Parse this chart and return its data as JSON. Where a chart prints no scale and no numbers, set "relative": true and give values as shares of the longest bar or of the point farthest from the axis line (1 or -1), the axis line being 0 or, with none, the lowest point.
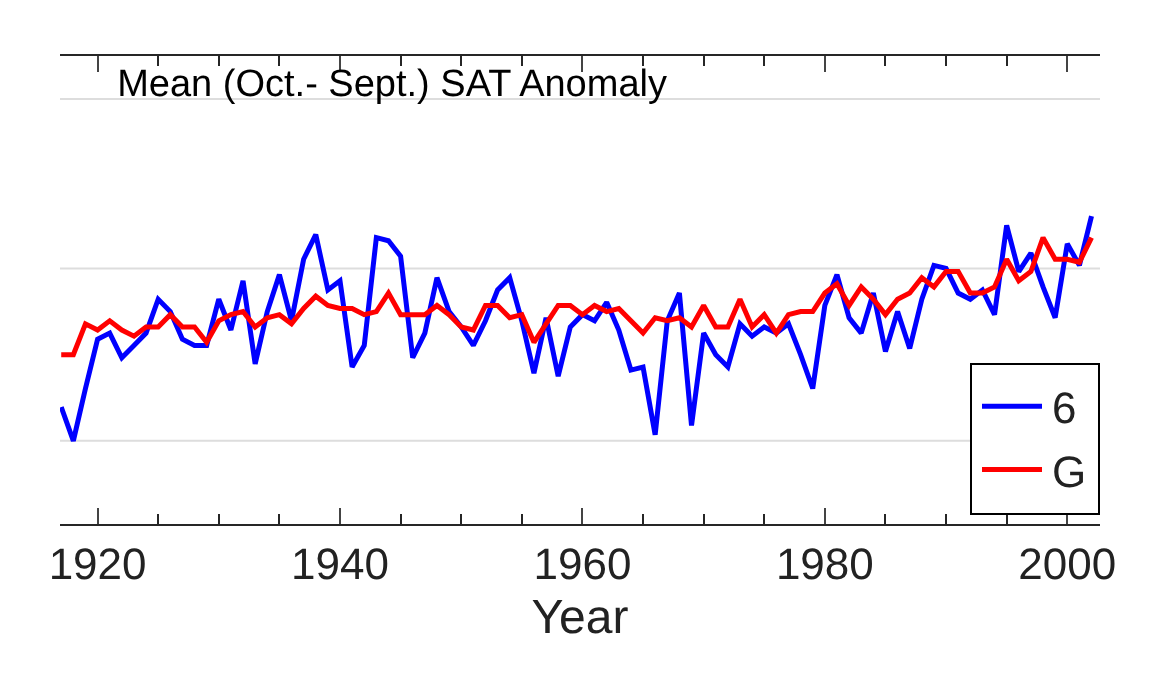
{
  "chart_data": {
    "type": "line",
    "title": "Mean (Oct.- Sept.) SAT Anomaly",
    "xlabel": "Year",
    "relative": true,
    "x": [
      1917,
      1918,
      1919,
      1920,
      1921,
      1922,
      1923,
      1924,
      1925,
      1926,
      1927,
      1928,
      1929,
      1930,
      1931,
      1932,
      1933,
      1934,
      1935,
      1936,
      1937,
      1938,
      1939,
      1940,
      1941,
      1942,
      1943,
      1944,
      1945,
      1946,
      1947,
      1948,
      1949,
      1950,
      1951,
      1952,
      1953,
      1954,
      1955,
      1956,
      1957,
      1958,
      1959,
      1960,
      1961,
      1962,
      1963,
      1964,
      1965,
      1966,
      1967,
      1968,
      1969,
      1970,
      1971,
      1972,
      1973,
      1974,
      1975,
      1976,
      1977,
      1978,
      1979,
      1980,
      1981,
      1982,
      1983,
      1984,
      1985,
      1986,
      1987,
      1988,
      1989,
      1990,
      1991,
      1992,
      1993,
      1994,
      1995,
      1996,
      1997,
      1998,
      1999,
      2000,
      2001,
      2002
    ],
    "xlim": [
      1916.9,
      2002.7
    ],
    "xticks": [
      1920,
      1940,
      1960,
      1980,
      2000
    ],
    "series": [
      {
        "name": "6",
        "color": "#0000ff",
        "values": [
          0.38,
          0.27,
          0.44,
          0.6,
          0.62,
          0.54,
          0.58,
          0.62,
          0.73,
          0.69,
          0.6,
          0.58,
          0.58,
          0.73,
          0.63,
          0.79,
          0.52,
          0.69,
          0.81,
          0.66,
          0.86,
          0.94,
          0.76,
          0.79,
          0.51,
          0.58,
          0.93,
          0.92,
          0.87,
          0.54,
          0.62,
          0.8,
          0.69,
          0.64,
          0.58,
          0.66,
          0.76,
          0.8,
          0.66,
          0.49,
          0.67,
          0.48,
          0.64,
          0.68,
          0.66,
          0.72,
          0.63,
          0.5,
          0.51,
          0.29,
          0.66,
          0.75,
          0.32,
          0.62,
          0.55,
          0.51,
          0.65,
          0.61,
          0.64,
          0.62,
          0.65,
          0.55,
          0.44,
          0.71,
          0.81,
          0.67,
          0.62,
          0.75,
          0.56,
          0.69,
          0.57,
          0.73,
          0.84,
          0.83,
          0.75,
          0.73,
          0.76,
          0.68,
          0.97,
          0.82,
          0.88,
          0.77,
          0.67,
          0.91,
          0.84,
          1.0
        ]
      },
      {
        "name": "G",
        "color": "#ff0000",
        "values": [
          0.55,
          0.55,
          0.65,
          0.63,
          0.66,
          0.63,
          0.61,
          0.64,
          0.64,
          0.68,
          0.64,
          0.64,
          0.59,
          0.66,
          0.68,
          0.69,
          0.64,
          0.67,
          0.68,
          0.65,
          0.7,
          0.74,
          0.71,
          0.7,
          0.7,
          0.68,
          0.69,
          0.75,
          0.68,
          0.68,
          0.68,
          0.71,
          0.68,
          0.64,
          0.63,
          0.71,
          0.71,
          0.67,
          0.68,
          0.59,
          0.65,
          0.71,
          0.71,
          0.68,
          0.71,
          0.69,
          0.7,
          0.66,
          0.62,
          0.67,
          0.66,
          0.67,
          0.64,
          0.71,
          0.64,
          0.64,
          0.73,
          0.64,
          0.68,
          0.62,
          0.68,
          0.69,
          0.69,
          0.75,
          0.78,
          0.71,
          0.77,
          0.73,
          0.68,
          0.73,
          0.75,
          0.8,
          0.77,
          0.82,
          0.82,
          0.75,
          0.75,
          0.77,
          0.86,
          0.79,
          0.82,
          0.93,
          0.86,
          0.86,
          0.85,
          0.93
        ]
      }
    ],
    "ref_lines": [
      {
        "axis": "y",
        "value": 0.27,
        "color": "#dddddd"
      },
      {
        "axis": "y",
        "value": 0.83,
        "color": "#dddddd"
      },
      {
        "axis": "y",
        "value": 1.38,
        "color": "#dddddd"
      }
    ],
    "legend": "bottom right",
    "marker": "none",
    "line_style": "solid"
  }
}
